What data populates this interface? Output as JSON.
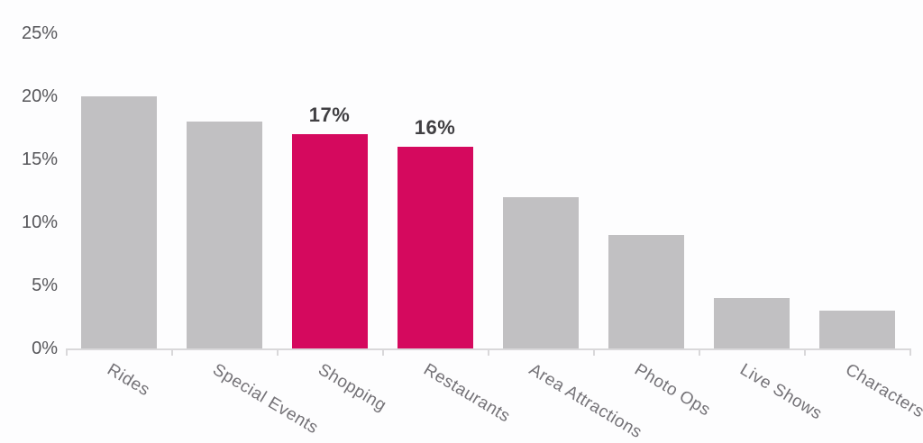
{
  "chart_data": {
    "type": "bar",
    "title": "",
    "xlabel": "",
    "ylabel": "",
    "categories": [
      "Rides",
      "Special Events",
      "Shopping",
      "Restaurants",
      "Area Attractions",
      "Photo Ops",
      "Live Shows",
      "Characters"
    ],
    "values": [
      20,
      18,
      17,
      16,
      12,
      9,
      4,
      3
    ],
    "unit": "%",
    "data_labels": [
      "",
      "",
      "17%",
      "16%",
      "",
      "",
      "",
      ""
    ],
    "highlighted_indices": [
      2,
      3
    ],
    "y_ticks": [
      0,
      5,
      10,
      15,
      20,
      25
    ],
    "y_tick_labels": [
      "0%",
      "5%",
      "10%",
      "15%",
      "20%",
      "25%"
    ],
    "ylim": [
      0,
      25
    ],
    "grid": false,
    "legend": "none",
    "x_label_rotation_deg": 31
  },
  "colors": {
    "bar_default": "#c1c0c2",
    "bar_highlight": "#d5095e",
    "axis_line": "#d9d8da",
    "y_tick_label": "#56565a",
    "x_tick_label": "#747277",
    "value_label": "#414043",
    "background": "#fdfdfe"
  }
}
